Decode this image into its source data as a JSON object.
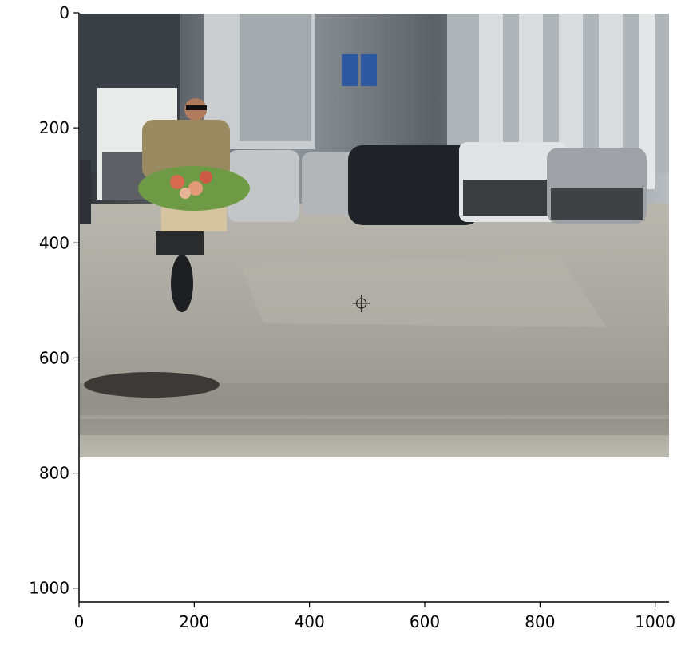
{
  "figure": {
    "type": "image-with-axes",
    "x_ticks": [
      "0",
      "200",
      "400",
      "600",
      "800",
      "1000"
    ],
    "y_ticks": [
      "0",
      "200",
      "400",
      "600",
      "800",
      "1000"
    ],
    "x_tick_values": [
      0,
      200,
      400,
      600,
      800,
      1000
    ],
    "y_tick_values": [
      0,
      200,
      400,
      600,
      800,
      1000
    ],
    "x_range": [
      0,
      1024
    ],
    "y_range": [
      1024,
      0
    ],
    "image_extent": {
      "width": 1024,
      "height": 768
    },
    "marker": {
      "x": 490,
      "y": 505,
      "shape": "crosshair-circle",
      "color": "#222222"
    },
    "colors": {
      "sky": "#cfd8de",
      "building_dark": "#3a3f45",
      "building_light": "#b9bfc4",
      "road": "#a9a79f",
      "road_dark": "#6f6d68",
      "jacket": "#9a8a62",
      "flowers": "#d86a50",
      "greenery": "#6f9a45"
    }
  }
}
